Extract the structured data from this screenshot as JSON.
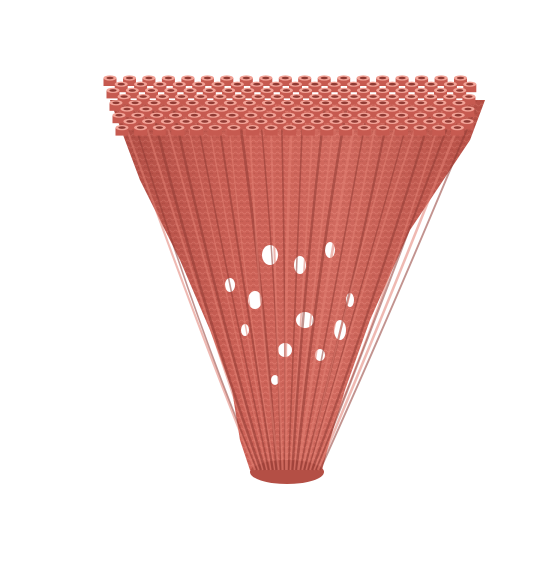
{
  "scene": {
    "background": "#ffffff",
    "object": "branching-tubular-funnel",
    "colors": {
      "base": "#c65a50",
      "light": "#e27f73",
      "dark": "#8f3a33",
      "highlight": "#f2a397"
    }
  }
}
